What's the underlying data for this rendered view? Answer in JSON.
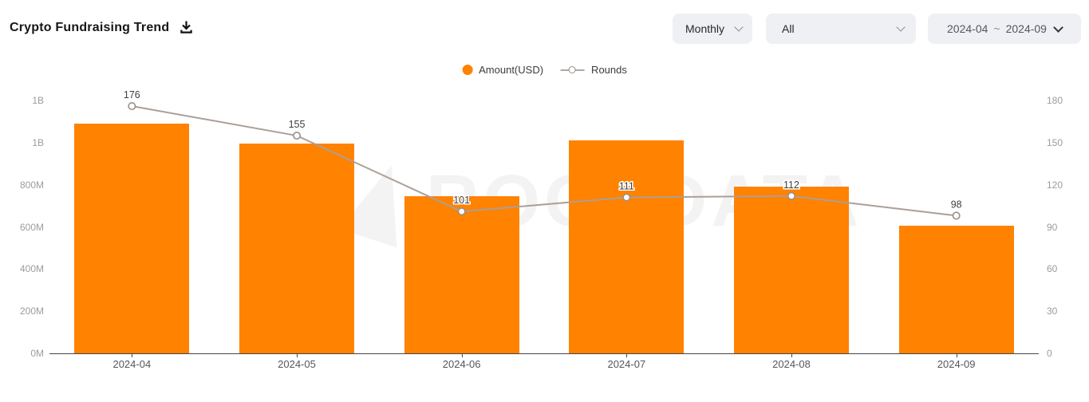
{
  "header": {
    "title": "Crypto Fundraising Trend"
  },
  "controls": {
    "period_dropdown": {
      "value": "Monthly"
    },
    "category_dropdown": {
      "value": "All"
    },
    "date_range_dropdown": {
      "start": "2024-04",
      "separator": "~",
      "end": "2024-09"
    }
  },
  "legend": {
    "amount": {
      "label": "Amount(USD)",
      "color": "#FF8201"
    },
    "rounds": {
      "label": "Rounds",
      "color": "#AB9F98"
    }
  },
  "watermark": "ROOTDATA",
  "chart_data": {
    "type": "bar",
    "subtype": "bar+line combo",
    "categories": [
      "2024-04",
      "2024-05",
      "2024-06",
      "2024-07",
      "2024-08",
      "2024-09"
    ],
    "series": [
      {
        "name": "Amount(USD)",
        "type": "bar",
        "color": "#FF8201",
        "axis": "left",
        "unit": "USD millions (estimated from bar heights)",
        "values": [
          1090,
          995,
          745,
          1010,
          790,
          605
        ]
      },
      {
        "name": "Rounds",
        "type": "line",
        "color": "#AB9F98",
        "axis": "right",
        "marker": "hollow-circle",
        "data_labels_shown": true,
        "values": [
          176,
          155,
          101,
          111,
          112,
          98
        ]
      }
    ],
    "left_axis": {
      "tick_labels_bottom_to_top": [
        "0M",
        "200M",
        "400M",
        "600M",
        "800M",
        "1B",
        "1B"
      ],
      "min": 0,
      "max": 1200
    },
    "right_axis": {
      "tick_labels_bottom_to_top": [
        "0",
        "30",
        "60",
        "90",
        "120",
        "150",
        "180"
      ],
      "min": 0,
      "max": 180
    },
    "grid": false,
    "legend_position": "top-center",
    "point_labels": [
      "176",
      "155",
      "101",
      "111",
      "112",
      "98"
    ]
  }
}
